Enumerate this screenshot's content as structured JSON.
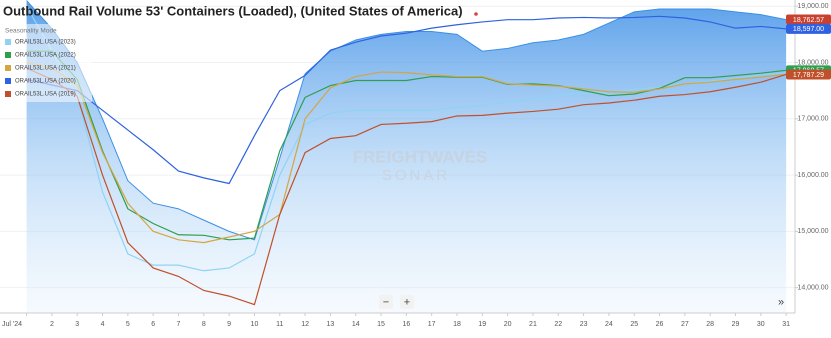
{
  "chart_data": {
    "type": "seasonality",
    "title": "Outbound Rail Volume 53' Containers (Loaded), (United States of America)",
    "legend_title": "Seasonality Mode",
    "watermark": [
      "FREIGHTWAVES",
      "SONAR"
    ],
    "controls": [
      "−",
      "+",
      "»"
    ],
    "x": [
      1,
      2,
      3,
      4,
      5,
      6,
      7,
      8,
      9,
      10,
      11,
      12,
      13,
      14,
      15,
      16,
      17,
      18,
      19,
      20,
      21,
      22,
      23,
      24,
      25,
      26,
      27,
      28,
      29,
      30,
      31
    ],
    "xlim": [
      -0.05,
      31.35
    ],
    "xticks": [
      {
        "value": 1,
        "label": "Jul '24"
      },
      2,
      3,
      4,
      5,
      6,
      7,
      8,
      9,
      10,
      11,
      12,
      13,
      14,
      15,
      16,
      17,
      18,
      19,
      20,
      21,
      22,
      23,
      24,
      25,
      26,
      27,
      28,
      29,
      30,
      31
    ],
    "ylim": [
      13550,
      19110
    ],
    "yticks": [
      {
        "value": 14000,
        "label": "14,000.00"
      },
      {
        "value": 15000,
        "label": "15,000.00"
      },
      {
        "value": 16000,
        "label": "16,000.00"
      },
      {
        "value": 17000,
        "label": "17,000.00"
      },
      {
        "value": 18000,
        "label": "18,000.00"
      },
      {
        "value": 19000,
        "label": "19,000.00"
      }
    ],
    "grid": true,
    "series": [
      {
        "type": "area",
        "color": "#3d8fe6",
        "label_color": "#c8412f",
        "values": [
          19100,
          18600,
          18000,
          17000,
          15900,
          15500,
          15400,
          15200,
          15000,
          14850,
          16300,
          17800,
          18200,
          18400,
          18500,
          18550,
          18550,
          18500,
          18200,
          18250,
          18350,
          18400,
          18500,
          18700,
          18900,
          18950,
          18950,
          18950,
          18900,
          18850,
          18762.57
        ],
        "value_labels": [
          null,
          null,
          null,
          null,
          null,
          null,
          null,
          null,
          null,
          null,
          null,
          null,
          null,
          null,
          null,
          null,
          null,
          null,
          null,
          null,
          null,
          null,
          null,
          null,
          null,
          null,
          null,
          null,
          null,
          null,
          "18,762.57"
        ]
      },
      {
        "name": "ORAIL53L.USA (2023)",
        "color": "#8fd3f4",
        "values": [
          19000,
          18200,
          17400,
          15700,
          14600,
          14400,
          14400,
          14300,
          14350,
          14600,
          16000,
          16900,
          17100,
          17150,
          17150,
          17150,
          17150,
          17200,
          17230,
          17300,
          17350,
          17420,
          17450,
          17480,
          17520,
          17560,
          17620,
          17670,
          17720,
          17780,
          17820
        ]
      },
      {
        "name": "ORAIL53L.USA (2022)",
        "color": "#2e9e4f",
        "values": [
          18200,
          18200,
          17700,
          16430,
          15400,
          15140,
          14940,
          14930,
          14850,
          14880,
          16430,
          17380,
          17590,
          17680,
          17680,
          17680,
          17750,
          17740,
          17740,
          17610,
          17620,
          17590,
          17500,
          17410,
          17440,
          17540,
          17730,
          17730,
          17770,
          17810,
          17860.57
        ],
        "value_labels": [
          null,
          null,
          null,
          null,
          null,
          null,
          null,
          null,
          null,
          null,
          null,
          null,
          null,
          null,
          null,
          null,
          null,
          null,
          null,
          null,
          null,
          null,
          null,
          null,
          null,
          null,
          null,
          null,
          null,
          null,
          "17,860.57"
        ]
      },
      {
        "name": "ORAIL53L.USA (2021)",
        "color": "#d4a640",
        "values": [
          18000,
          17900,
          17600,
          16400,
          15500,
          15000,
          14850,
          14800,
          14900,
          15000,
          15300,
          17000,
          17550,
          17750,
          17830,
          17820,
          17780,
          17750,
          17750,
          17620,
          17600,
          17580,
          17530,
          17480,
          17470,
          17530,
          17620,
          17650,
          17700,
          17740,
          17790
        ]
      },
      {
        "name": "ORAIL53L.USA (2020)",
        "color": "#2f62e0",
        "values": [
          17700,
          17600,
          17500,
          17150,
          16800,
          16450,
          16070,
          15950,
          15850,
          16700,
          17500,
          17770,
          18220,
          18360,
          18470,
          18520,
          18610,
          18670,
          18720,
          18760,
          18760,
          18790,
          18800,
          18790,
          18800,
          18820,
          18790,
          18720,
          18610,
          18640,
          18597
        ],
        "value_labels": [
          null,
          null,
          null,
          null,
          null,
          null,
          null,
          null,
          null,
          null,
          null,
          null,
          null,
          null,
          null,
          null,
          null,
          null,
          null,
          null,
          null,
          null,
          null,
          null,
          null,
          null,
          null,
          null,
          null,
          null,
          "18,597.00"
        ]
      },
      {
        "name": "ORAIL53L.USA (2019)",
        "color": "#c0502a",
        "values": [
          17900,
          17700,
          17400,
          16000,
          14800,
          14350,
          14200,
          13950,
          13850,
          13700,
          15300,
          16400,
          16650,
          16700,
          16900,
          16920,
          16950,
          17050,
          17060,
          17100,
          17130,
          17170,
          17250,
          17280,
          17330,
          17400,
          17430,
          17480,
          17560,
          17650,
          17787.29
        ],
        "value_labels": [
          null,
          null,
          null,
          null,
          null,
          null,
          null,
          null,
          null,
          null,
          null,
          null,
          null,
          null,
          null,
          null,
          null,
          null,
          null,
          null,
          null,
          null,
          null,
          null,
          null,
          null,
          null,
          null,
          null,
          null,
          "17,787.29"
        ]
      }
    ]
  }
}
